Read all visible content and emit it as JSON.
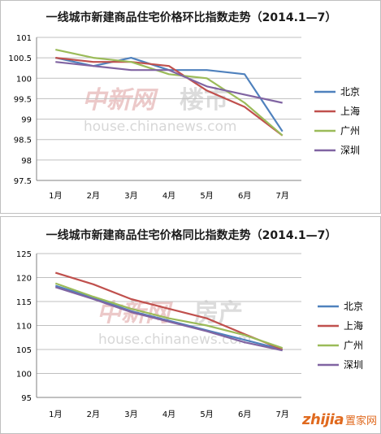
{
  "chart_data": [
    {
      "type": "line",
      "title": "一线城市新建商品住宅价格环比指数走势（2014.1—7）",
      "categories": [
        "1月",
        "2月",
        "3月",
        "4月",
        "5月",
        "6月",
        "7月"
      ],
      "ylim": [
        97.5,
        101
      ],
      "yticks": [
        "97.5",
        "98",
        "98.5",
        "99",
        "99.5",
        "100",
        "100.5",
        "101"
      ],
      "grid": true,
      "legend_position": "right",
      "series": [
        {
          "name": "北京",
          "color": "#4f81bd",
          "values": [
            100.5,
            100.3,
            100.5,
            100.2,
            100.2,
            100.1,
            98.7
          ]
        },
        {
          "name": "上海",
          "color": "#c0504d",
          "values": [
            100.5,
            100.4,
            100.4,
            100.3,
            99.7,
            99.3,
            98.6
          ]
        },
        {
          "name": "广州",
          "color": "#9bbb59",
          "values": [
            100.7,
            100.5,
            100.4,
            100.1,
            100.0,
            99.4,
            98.6
          ]
        },
        {
          "name": "深圳",
          "color": "#8064a2",
          "values": [
            100.4,
            100.3,
            100.2,
            100.2,
            99.8,
            99.6,
            99.4
          ]
        }
      ]
    },
    {
      "type": "line",
      "title": "一线城市新建商品住宅价格同比指数走势（2014.1—7）",
      "categories": [
        "1月",
        "2月",
        "3月",
        "4月",
        "5月",
        "6月",
        "7月"
      ],
      "ylim": [
        95,
        125
      ],
      "yticks": [
        "95",
        "100",
        "105",
        "110",
        "115",
        "120",
        "125"
      ],
      "grid": true,
      "legend_position": "right",
      "series": [
        {
          "name": "北京",
          "color": "#4f81bd",
          "values": [
            118.3,
            115.8,
            113.0,
            111.0,
            109.0,
            107.0,
            105.0
          ]
        },
        {
          "name": "上海",
          "color": "#c0504d",
          "values": [
            121.0,
            118.6,
            115.5,
            113.5,
            111.5,
            108.2,
            105.0
          ]
        },
        {
          "name": "广州",
          "color": "#9bbb59",
          "values": [
            118.8,
            116.0,
            113.5,
            111.5,
            110.0,
            108.0,
            105.3
          ]
        },
        {
          "name": "深圳",
          "color": "#8064a2",
          "values": [
            118.0,
            115.5,
            112.8,
            110.8,
            108.8,
            106.5,
            104.8
          ]
        }
      ]
    }
  ],
  "watermark": {
    "cn_logo": "中新网",
    "cn_section1": "楼市",
    "cn_section2": "房产",
    "url": "house.chinanews.com"
  },
  "site_logo": {
    "brand": "zhijia",
    "brand_cn": "置家网"
  }
}
